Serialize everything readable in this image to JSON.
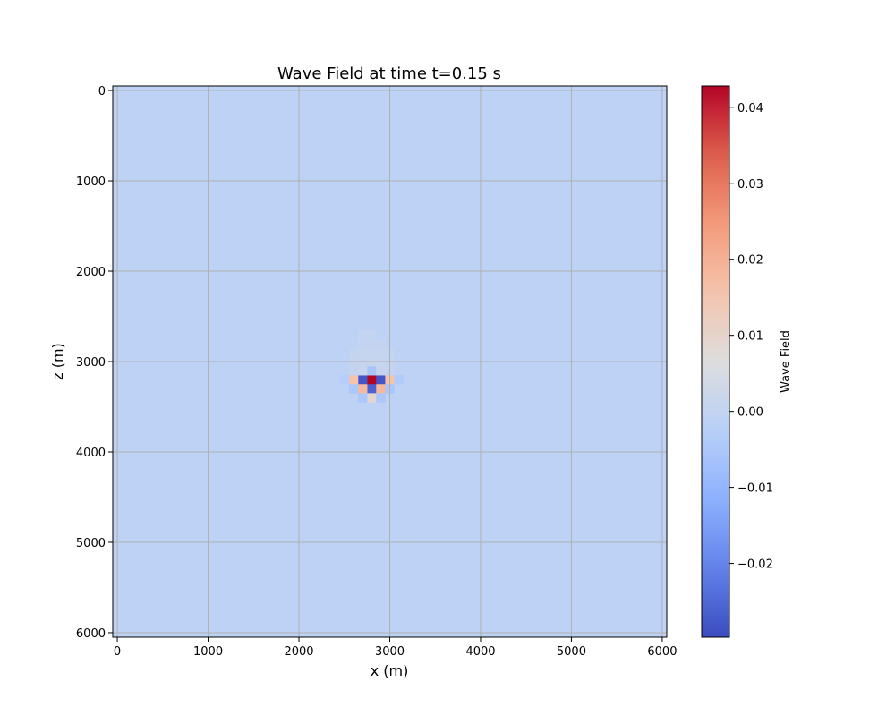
{
  "chart_data": {
    "type": "heatmap",
    "title": "Wave Field at time t=0.15 s",
    "xlabel": "x (m)",
    "ylabel": "z (m)",
    "xlim": [
      -50,
      6050
    ],
    "ylim": [
      6050,
      -50
    ],
    "x_ticks": [
      0,
      1000,
      2000,
      3000,
      4000,
      5000,
      6000
    ],
    "y_ticks": [
      0,
      1000,
      2000,
      3000,
      4000,
      5000,
      6000
    ],
    "grid": true,
    "colormap": "coolwarm",
    "cell_size_m": 100,
    "background_value": -0.0012,
    "source_position_m": [
      2800,
      3200
    ],
    "nonzero_cells": [
      {
        "x": 2800,
        "z": 3200,
        "value": 0.043
      },
      {
        "x": 2700,
        "z": 3200,
        "value": -0.028
      },
      {
        "x": 2900,
        "z": 3200,
        "value": -0.028
      },
      {
        "x": 2800,
        "z": 3300,
        "value": -0.026
      },
      {
        "x": 2800,
        "z": 3100,
        "value": -0.006
      },
      {
        "x": 2600,
        "z": 3200,
        "value": 0.016
      },
      {
        "x": 3000,
        "z": 3200,
        "value": 0.016
      },
      {
        "x": 2700,
        "z": 3300,
        "value": 0.018
      },
      {
        "x": 2900,
        "z": 3300,
        "value": 0.018
      },
      {
        "x": 2800,
        "z": 3400,
        "value": 0.009
      },
      {
        "x": 2600,
        "z": 3300,
        "value": -0.005
      },
      {
        "x": 3000,
        "z": 3300,
        "value": -0.005
      },
      {
        "x": 3100,
        "z": 3200,
        "value": -0.004
      },
      {
        "x": 2500,
        "z": 3200,
        "value": -0.003
      },
      {
        "x": 2700,
        "z": 3400,
        "value": -0.005
      },
      {
        "x": 2900,
        "z": 3400,
        "value": -0.005
      },
      {
        "x": 2700,
        "z": 3100,
        "value": 0.001
      },
      {
        "x": 2900,
        "z": 3100,
        "value": 0.001
      },
      {
        "x": 2600,
        "z": 3100,
        "value": 0.0005
      },
      {
        "x": 3000,
        "z": 3100,
        "value": 0.0005
      },
      {
        "x": 2800,
        "z": 3000,
        "value": 0.001
      },
      {
        "x": 2700,
        "z": 3000,
        "value": 0.0006
      },
      {
        "x": 2900,
        "z": 3000,
        "value": 0.0006
      },
      {
        "x": 2600,
        "z": 3000,
        "value": 0.0004
      },
      {
        "x": 3000,
        "z": 3000,
        "value": 0.0004
      },
      {
        "x": 2700,
        "z": 2900,
        "value": 0.0006
      },
      {
        "x": 2800,
        "z": 2900,
        "value": 0.0006
      },
      {
        "x": 2900,
        "z": 2900,
        "value": 0.0006
      },
      {
        "x": 2600,
        "z": 2900,
        "value": 0.0003
      },
      {
        "x": 3000,
        "z": 2900,
        "value": 0.0003
      },
      {
        "x": 2700,
        "z": 2800,
        "value": 0.0004
      },
      {
        "x": 2800,
        "z": 2800,
        "value": 0.0004
      },
      {
        "x": 2900,
        "z": 2800,
        "value": 0.0004
      },
      {
        "x": 2700,
        "z": 2700,
        "value": 0.0002
      },
      {
        "x": 2800,
        "z": 2700,
        "value": 0.0002
      }
    ],
    "colorbar": {
      "label": "Wave Field",
      "vmin": -0.0297,
      "vmax": 0.0428,
      "ticks": [
        -0.02,
        -0.01,
        0.0,
        0.01,
        0.02,
        0.03,
        0.04
      ],
      "tick_labels": [
        "−0.02",
        "−0.01",
        "0.00",
        "0.01",
        "0.02",
        "0.03",
        "0.04"
      ]
    }
  }
}
